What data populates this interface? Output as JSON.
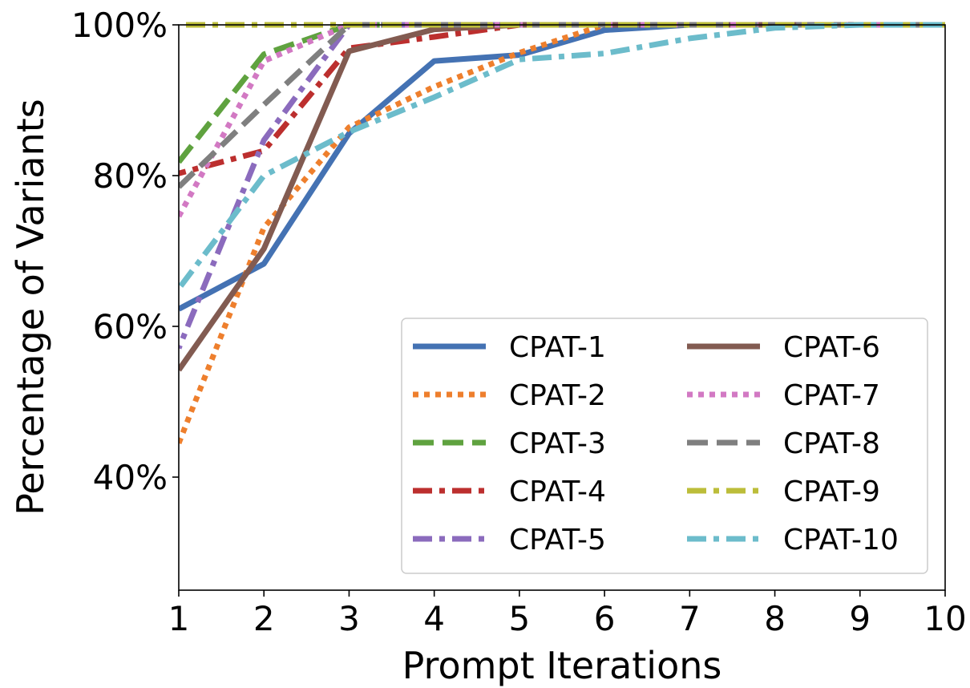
{
  "chart_data": {
    "type": "line",
    "title": "",
    "xlabel": "Prompt Iterations",
    "ylabel": "Percentage of Variants",
    "xlim": [
      1,
      10
    ],
    "ylim": [
      25,
      100
    ],
    "x_ticks": [
      1,
      2,
      3,
      4,
      5,
      6,
      7,
      8,
      9,
      10
    ],
    "y_ticks": [
      40,
      60,
      80,
      100
    ],
    "y_tick_labels": [
      "40%",
      "60%",
      "80%",
      "100%"
    ],
    "grid": false,
    "legend": {
      "placement": "lower-right",
      "columns": 2
    },
    "x": [
      1,
      2,
      3,
      4,
      5,
      6,
      7,
      8,
      9,
      10
    ],
    "series": [
      {
        "name": "CPAT-1",
        "color": "#4472b3",
        "style": "solid",
        "values": [
          62.3,
          68.3,
          85.6,
          95.2,
          96.0,
          99.3,
          100,
          100,
          100,
          100
        ]
      },
      {
        "name": "CPAT-2",
        "color": "#ee7f2d",
        "style": "dotted",
        "values": [
          44.5,
          73.1,
          86.4,
          91.8,
          96.3,
          100,
          100,
          100,
          100,
          100
        ]
      },
      {
        "name": "CPAT-3",
        "color": "#5fa23f",
        "style": "dashed",
        "values": [
          81.8,
          96.1,
          100,
          100,
          100,
          100,
          100,
          100,
          100,
          100
        ]
      },
      {
        "name": "CPAT-4",
        "color": "#bc2f2e",
        "style": "dashdot",
        "values": [
          80.3,
          83.3,
          96.9,
          98.4,
          100,
          100,
          100,
          100,
          100,
          100
        ]
      },
      {
        "name": "CPAT-5",
        "color": "#8b6bbd",
        "style": "dashdot",
        "values": [
          57.1,
          84.7,
          100,
          100,
          100,
          100,
          100,
          100,
          100,
          100
        ]
      },
      {
        "name": "CPAT-6",
        "color": "#825b51",
        "style": "solid",
        "values": [
          54.2,
          70.3,
          96.5,
          99.4,
          100,
          100,
          100,
          100,
          100,
          100
        ]
      },
      {
        "name": "CPAT-7",
        "color": "#d279c3",
        "style": "dotted",
        "values": [
          74.6,
          95.2,
          100,
          100,
          100,
          100,
          100,
          100,
          100,
          100
        ]
      },
      {
        "name": "CPAT-8",
        "color": "#7f7f7f",
        "style": "dashed",
        "values": [
          78.5,
          89.4,
          100,
          100,
          100,
          100,
          100,
          100,
          100,
          100
        ]
      },
      {
        "name": "CPAT-9",
        "color": "#bcbd3a",
        "style": "dashdot",
        "values": [
          100,
          100,
          100,
          100,
          100,
          100,
          100,
          100,
          100,
          100
        ]
      },
      {
        "name": "CPAT-10",
        "color": "#6cbccb",
        "style": "dashdot",
        "values": [
          65.0,
          80.0,
          85.8,
          90.4,
          95.4,
          96.2,
          98.2,
          99.6,
          100,
          100
        ]
      }
    ]
  }
}
